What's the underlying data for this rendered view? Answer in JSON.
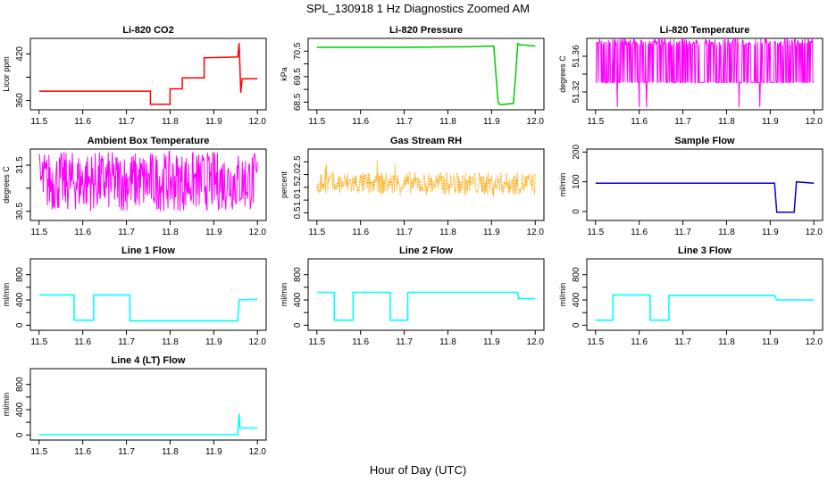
{
  "figure": {
    "title": "SPL_130918  1 Hz Diagnostics Zoomed AM",
    "xlabel": "Hour of Day (UTC)"
  },
  "chart_data": [
    {
      "type": "line",
      "title": "Li-820 CO2",
      "ylabel": "Licor ppm",
      "color": "#ff0000",
      "xlim": [
        11.48,
        12.02
      ],
      "ylim": [
        348,
        440
      ],
      "xticks": [
        "11.5",
        "11.6",
        "11.7",
        "11.8",
        "11.9",
        "12.0"
      ],
      "yticks": [
        360,
        390,
        420
      ],
      "yticklabels": [
        "360",
        "",
        "420"
      ],
      "series": [
        {
          "x": [
            11.5,
            11.755,
            11.755,
            11.8,
            11.8,
            11.828,
            11.828,
            11.878,
            11.878,
            11.955,
            11.958,
            11.962,
            11.965,
            12.0
          ],
          "y": [
            372,
            372,
            355,
            355,
            375,
            375,
            389,
            389,
            415,
            416,
            434,
            370,
            388,
            388
          ]
        }
      ]
    },
    {
      "type": "line",
      "title": "Li-820 Pressure",
      "ylabel": "kPa",
      "color": "#00cc00",
      "xlim": [
        11.48,
        12.02
      ],
      "ylim": [
        68.2,
        71.0
      ],
      "xticks": [
        "11.5",
        "11.6",
        "11.7",
        "11.8",
        "11.9",
        "12.0"
      ],
      "yticks": [
        68.5,
        69.0,
        69.5,
        70.0,
        70.5
      ],
      "yticklabels": [
        "68.5",
        "",
        "69.5",
        "",
        "70.5"
      ],
      "series": [
        {
          "x": [
            11.5,
            11.7,
            11.85,
            11.905,
            11.915,
            11.92,
            11.95,
            11.955,
            11.96,
            11.965,
            12.0
          ],
          "y": [
            70.65,
            70.65,
            70.67,
            70.7,
            68.5,
            68.4,
            68.45,
            69.5,
            70.8,
            70.75,
            70.7
          ]
        }
      ]
    },
    {
      "type": "line",
      "title": "Li-820 Temperature",
      "ylabel": "degrees C",
      "color": "#ff00ff",
      "xlim": [
        11.48,
        12.02
      ],
      "ylim": [
        51.3,
        51.38
      ],
      "xticks": [
        "11.5",
        "11.6",
        "11.7",
        "11.8",
        "11.9",
        "12.0"
      ],
      "yticks": [
        51.32,
        51.34,
        51.36
      ],
      "yticklabels": [
        "51.32",
        "",
        "51.36"
      ],
      "series": [
        {
          "x": [
            11.5,
            12.0
          ],
          "y": [
            51.328,
            51.38
          ],
          "note_range": true
        }
      ]
    },
    {
      "type": "line",
      "title": "Ambient Box Temperature",
      "ylabel": "degrees C",
      "color": "#ff00ff",
      "xlim": [
        11.48,
        12.02
      ],
      "ylim": [
        30.3,
        31.85
      ],
      "xticks": [
        "11.5",
        "11.6",
        "11.7",
        "11.8",
        "11.9",
        "12.0"
      ],
      "yticks": [
        30.5,
        31.0,
        31.5
      ],
      "yticklabels": [
        "30.5",
        "",
        "31.5"
      ],
      "series": [
        {
          "x": [
            11.5,
            12.0
          ],
          "y": [
            30.5,
            31.8
          ],
          "note_range": true
        }
      ]
    },
    {
      "type": "line",
      "title": "Gas Stream RH",
      "ylabel": "percent",
      "color": "#ffa500",
      "xlim": [
        11.48,
        12.02
      ],
      "ylim": [
        0.2,
        3.0
      ],
      "xticks": [
        "11.5",
        "11.6",
        "11.7",
        "11.8",
        "11.9",
        "12.0"
      ],
      "yticks": [
        0.5,
        1.0,
        1.5,
        2.0,
        2.5
      ],
      "yticklabels": [
        "0.5",
        "1.0",
        "1.5",
        "2.0",
        "2.5"
      ],
      "series": [
        {
          "x": [
            11.5,
            12.0
          ],
          "y": [
            1.2,
            2.1
          ],
          "note_range": true
        }
      ]
    },
    {
      "type": "line",
      "title": "Sample Flow",
      "ylabel": "ml/min",
      "color": "#0000cc",
      "xlim": [
        11.48,
        12.02
      ],
      "ylim": [
        -30,
        210
      ],
      "xticks": [
        "11.5",
        "11.6",
        "11.7",
        "11.8",
        "11.9",
        "12.0"
      ],
      "yticks": [
        0,
        100,
        200
      ],
      "yticklabels": [
        "0",
        "100",
        "200"
      ],
      "series": [
        {
          "x": [
            11.5,
            11.91,
            11.915,
            11.955,
            11.96,
            12.0
          ],
          "y": [
            95,
            95,
            -2,
            -2,
            100,
            95
          ]
        }
      ]
    },
    {
      "type": "line",
      "title": "Line 1 Flow",
      "ylabel": "ml/min",
      "color": "#00ffff",
      "xlim": [
        11.48,
        12.02
      ],
      "ylim": [
        -80,
        1050
      ],
      "xticks": [
        "11.5",
        "11.6",
        "11.7",
        "11.8",
        "11.9",
        "12.0"
      ],
      "yticks": [
        0,
        200,
        400,
        600,
        800
      ],
      "yticklabels": [
        "0",
        "",
        "400",
        "",
        "800"
      ],
      "series": [
        {
          "x": [
            11.5,
            11.58,
            11.58,
            11.625,
            11.625,
            11.708,
            11.708,
            11.955,
            11.958,
            12.0
          ],
          "y": [
            480,
            480,
            80,
            80,
            480,
            480,
            70,
            70,
            400,
            410
          ]
        }
      ]
    },
    {
      "type": "line",
      "title": "Line 2 Flow",
      "ylabel": "ml/min",
      "color": "#00ffff",
      "xlim": [
        11.48,
        12.02
      ],
      "ylim": [
        -80,
        1050
      ],
      "xticks": [
        "11.5",
        "11.6",
        "11.7",
        "11.8",
        "11.9",
        "12.0"
      ],
      "yticks": [
        0,
        200,
        400,
        600,
        800
      ],
      "yticklabels": [
        "0",
        "",
        "400",
        "",
        "800"
      ],
      "series": [
        {
          "x": [
            11.5,
            11.54,
            11.54,
            11.583,
            11.583,
            11.668,
            11.668,
            11.708,
            11.708,
            11.96,
            11.962,
            12.0
          ],
          "y": [
            520,
            520,
            80,
            80,
            520,
            520,
            80,
            80,
            520,
            520,
            420,
            420
          ]
        }
      ]
    },
    {
      "type": "line",
      "title": "Line 3 Flow",
      "ylabel": "ml/min",
      "color": "#00ffff",
      "xlim": [
        11.48,
        12.02
      ],
      "ylim": [
        -80,
        1050
      ],
      "xticks": [
        "11.5",
        "11.6",
        "11.7",
        "11.8",
        "11.9",
        "12.0"
      ],
      "yticks": [
        0,
        200,
        400,
        600,
        800
      ],
      "yticklabels": [
        "0",
        "",
        "400",
        "",
        "800"
      ],
      "series": [
        {
          "x": [
            11.5,
            11.54,
            11.54,
            11.625,
            11.625,
            11.668,
            11.668,
            11.91,
            11.915,
            12.0
          ],
          "y": [
            80,
            80,
            480,
            480,
            80,
            80,
            470,
            470,
            400,
            400
          ]
        }
      ]
    },
    {
      "type": "line",
      "title": "Line 4 (LT) Flow",
      "ylabel": "ml/min",
      "color": "#00ffff",
      "xlim": [
        11.48,
        12.02
      ],
      "ylim": [
        -80,
        1050
      ],
      "xticks": [
        "11.5",
        "11.6",
        "11.7",
        "11.8",
        "11.9",
        "12.0"
      ],
      "yticks": [
        0,
        200,
        400,
        600,
        800
      ],
      "yticklabels": [
        "0",
        "",
        "400",
        "",
        "800"
      ],
      "series": [
        {
          "x": [
            11.5,
            11.955,
            11.958,
            11.96,
            11.962,
            12.0
          ],
          "y": [
            5,
            5,
            340,
            120,
            110,
            110
          ]
        }
      ]
    }
  ]
}
